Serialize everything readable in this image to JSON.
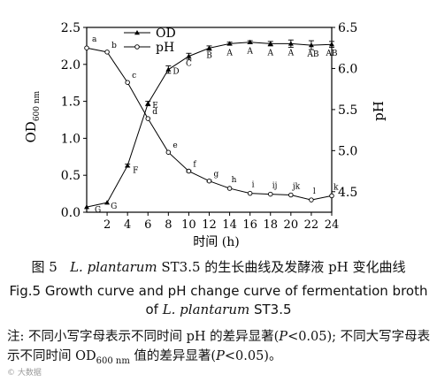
{
  "chart_data": {
    "type": "line",
    "x": [
      0,
      2,
      4,
      6,
      8,
      10,
      12,
      14,
      16,
      18,
      20,
      22,
      24
    ],
    "xticks": [
      "2",
      "4",
      "6",
      "8",
      "10",
      "12",
      "14",
      "16",
      "18",
      "20",
      "22",
      "24"
    ],
    "xlabel": "时间 (h)",
    "xlim": [
      0,
      24
    ],
    "left_axis": {
      "label_main": "OD",
      "label_sub": "600 nm",
      "ylim": [
        0,
        2.5
      ],
      "ticks": [
        "0.0",
        "0.5",
        "1.0",
        "1.5",
        "2.0",
        "2.5"
      ]
    },
    "right_axis": {
      "label": "pH",
      "ylim": [
        4.25,
        6.5
      ],
      "ticks": [
        "4.5",
        "5.0",
        "5.5",
        "6.0",
        "6.5"
      ]
    },
    "series": [
      {
        "name": "OD",
        "axis": "left",
        "marker": "triangle",
        "values": [
          0.07,
          0.13,
          0.63,
          1.47,
          1.93,
          2.11,
          2.22,
          2.28,
          2.3,
          2.28,
          2.28,
          2.26,
          2.27
        ],
        "errors": [
          0,
          0,
          0.02,
          0.03,
          0.05,
          0.04,
          0.03,
          0.02,
          0.02,
          0.03,
          0.05,
          0.06,
          0.04
        ],
        "labels": [
          "G",
          "G",
          "F",
          "E",
          "D",
          "C",
          "B",
          "A",
          "A",
          "A",
          "A",
          "AB",
          "AB"
        ]
      },
      {
        "name": "pH",
        "axis": "right",
        "marker": "circle",
        "values": [
          6.25,
          6.2,
          5.83,
          5.39,
          4.98,
          4.75,
          4.63,
          4.54,
          4.48,
          4.47,
          4.46,
          4.4,
          4.45
        ],
        "errors": [
          0,
          0,
          0,
          0,
          0,
          0.01,
          0.01,
          0,
          0,
          0,
          0,
          0,
          0
        ],
        "labels": [
          "a",
          "b",
          "c",
          "d",
          "e",
          "f",
          "g",
          "h",
          "i",
          "ij",
          "jk",
          "l",
          "k"
        ]
      }
    ]
  },
  "caption_cn": {
    "fig": "图 5",
    "species": "L. plantarum",
    "rest": " ST3.5 的生长曲线及发酵液 pH 变化曲线"
  },
  "caption_en": {
    "line1": "Fig.5    Growth curve and pH change curve of fermentation broth",
    "of": "of ",
    "species": "L. plantarum",
    "strain": " ST3.5"
  },
  "note": {
    "part1": "注: 不同小写字母表示不同时间 pH 的差异显著(",
    "p1": "P",
    "part2": "<0.05); 不同大写字母表示不同时间 OD",
    "sub": "600 nm",
    "part3": " 值的差异显著(",
    "p2": "P",
    "part4": "<0.05)。"
  },
  "watermark": "© 大数据"
}
